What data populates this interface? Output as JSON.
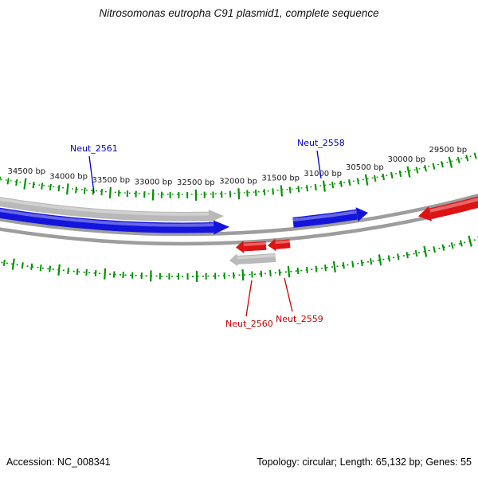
{
  "title": "Nitrosomonas eutropha C91 plasmid1, complete sequence",
  "status_bar": {
    "accession": "Accession: NC_008341",
    "summary": "Topology: circular; Length: 65,132 bp; Genes: 55"
  },
  "ruler": {
    "labels": [
      "34500 bp",
      "34000 bp",
      "33500 bp",
      "33000 bp",
      "32500 bp",
      "32000 bp",
      "31500 bp",
      "31000 bp",
      "30500 bp",
      "30000 bp",
      "29500 bp"
    ]
  },
  "genes": [
    {
      "name": "Neut_2561",
      "color": "#0000cc"
    },
    {
      "name": "Neut_2558",
      "color": "#0000cc"
    },
    {
      "name": "Neut_2559",
      "color": "#cc0000"
    },
    {
      "name": "Neut_2560",
      "color": "#cc0000"
    }
  ],
  "colors": {
    "forward_feature": "#1414dc",
    "reverse_feature": "#dc1414",
    "feature_track": "#b9b9b9",
    "backbone": "#9d9d9d",
    "ruler": "#009400",
    "ruler_text": "#1a1a1a"
  }
}
